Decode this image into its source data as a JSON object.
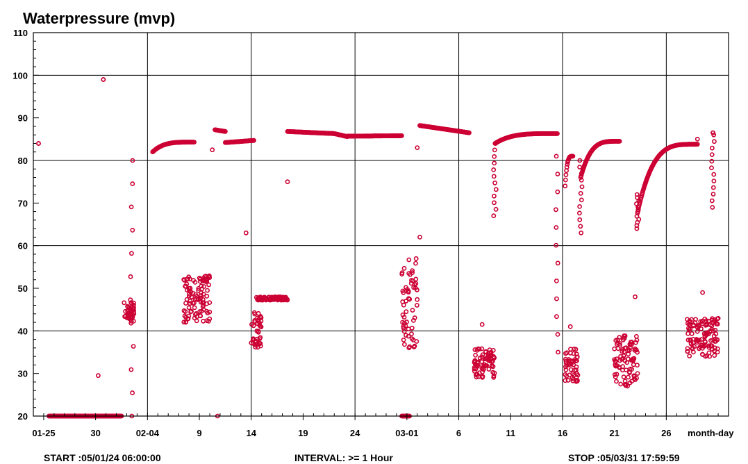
{
  "chart_data": {
    "type": "scatter",
    "title": "Waterpressure (mvp)",
    "xlabel": "month-day",
    "ylabel": "",
    "ylim": [
      20,
      110
    ],
    "y_ticks": [
      20,
      30,
      40,
      50,
      60,
      70,
      80,
      90,
      100,
      110
    ],
    "x_range_days": [
      "01-24",
      "03-31"
    ],
    "x_major_ticks": [
      {
        "label": "01-25",
        "date": "01-25"
      },
      {
        "label": "30",
        "date": "01-30"
      },
      {
        "label": "02-04",
        "date": "02-04"
      },
      {
        "label": "9",
        "date": "02-09"
      },
      {
        "label": "14",
        "date": "02-14"
      },
      {
        "label": "19",
        "date": "02-19"
      },
      {
        "label": "24",
        "date": "02-24"
      },
      {
        "label": "03-01",
        "date": "03-01"
      },
      {
        "label": "6",
        "date": "03-06"
      },
      {
        "label": "11",
        "date": "03-11"
      },
      {
        "label": "16",
        "date": "03-16"
      },
      {
        "label": "21",
        "date": "03-21"
      },
      {
        "label": "26",
        "date": "03-26"
      }
    ],
    "vertical_grid_dates": [
      "02-04",
      "02-14",
      "02-24",
      "03-06",
      "03-16",
      "03-26"
    ],
    "grid": true,
    "marker": "open-circle",
    "color": "#cc0033",
    "series": [
      {
        "segments": [
          {
            "from": "01-24 12:00",
            "to": "01-24 12:00",
            "y": [
              84,
              84
            ]
          },
          {
            "from": "01-25 12:00",
            "to": "02-01 12:00",
            "y": [
              20,
              20
            ]
          },
          {
            "from": "01-30 18:00",
            "to": "01-30 18:00",
            "y": [
              99,
              99
            ]
          },
          {
            "from": "02-04 12:00",
            "to": "02-08 12:00",
            "y": [
              82,
              84.3
            ],
            "curve": "log"
          },
          {
            "from": "02-10 12:00",
            "to": "02-11 12:00",
            "y": [
              87.2,
              86.8
            ]
          },
          {
            "from": "02-11 12:00",
            "to": "02-14 06:00",
            "y": [
              84.2,
              84.7
            ]
          },
          {
            "from": "02-17 12:00",
            "to": "02-22 00:00",
            "y": [
              86.8,
              86.3
            ]
          },
          {
            "from": "02-22 00:00",
            "to": "02-23 06:00",
            "y": [
              86.3,
              85.6
            ]
          },
          {
            "from": "02-23 06:00",
            "to": "02-28 12:00",
            "y": [
              85.7,
              85.8
            ]
          },
          {
            "from": "02-28 12:00",
            "to": "03-01 06:00",
            "y": [
              20,
              20
            ]
          },
          {
            "from": "03-02 06:00",
            "to": "03-07 00:00",
            "y": [
              88.2,
              86.5
            ]
          },
          {
            "from": "03-09 12:00",
            "to": "03-15 12:00",
            "y": [
              84,
              86.3
            ],
            "curve": "log"
          },
          {
            "from": "03-16 06:00",
            "to": "03-17 00:00",
            "y": [
              74,
              81
            ],
            "curve": "log"
          },
          {
            "from": "03-17 18:00",
            "to": "03-21 12:00",
            "y": [
              76,
              84.5
            ],
            "curve": "log"
          },
          {
            "from": "03-23 06:00",
            "to": "03-29 00:00",
            "y": [
              68,
              83.8
            ],
            "curve": "log"
          },
          {
            "from": "03-30 12:00",
            "to": "03-30 12:00",
            "y": [
              86.5,
              86.5
            ]
          }
        ]
      },
      {
        "clusters": [
          {
            "x_from": "02-01 18:00",
            "x_to": "02-02 18:00",
            "y_low": 42,
            "y_high": 47
          },
          {
            "x_from": "02-07 12:00",
            "x_to": "02-10 00:00",
            "y_low": 42,
            "y_high": 53
          },
          {
            "x_from": "02-14 00:00",
            "x_to": "02-15 00:00",
            "y_low": 36,
            "y_high": 45
          },
          {
            "x_from": "02-14 12:00",
            "x_to": "02-17 12:00",
            "y_low": 47.2,
            "y_high": 48
          },
          {
            "x_from": "02-28 12:00",
            "x_to": "03-02 00:00",
            "y_low": 36,
            "y_high": 57
          },
          {
            "x_from": "03-07 12:00",
            "x_to": "03-09 12:00",
            "y_low": 29,
            "y_high": 36
          },
          {
            "x_from": "03-16 06:00",
            "x_to": "03-17 12:00",
            "y_low": 28,
            "y_high": 36
          },
          {
            "x_from": "03-21 00:00",
            "x_to": "03-23 06:00",
            "y_low": 27,
            "y_high": 39
          },
          {
            "x_from": "03-28 00:00",
            "x_to": "03-31 00:00",
            "y_low": 34,
            "y_high": 43
          }
        ]
      },
      {
        "transitions": [
          {
            "x": "02-02 12:00",
            "y": [
              20,
              80
            ]
          },
          {
            "x": "03-09 12:00",
            "y": [
              67,
              84
            ]
          },
          {
            "x": "03-15 12:00",
            "y": [
              35,
              81
            ]
          },
          {
            "x": "03-17 18:00",
            "y": [
              63,
              80
            ]
          },
          {
            "x": "03-23 06:00",
            "y": [
              64,
              72
            ]
          },
          {
            "x": "03-30 12:00",
            "y": [
              69,
              86
            ]
          }
        ]
      },
      {
        "outliers": [
          {
            "x": "01-30 06:00",
            "y": 29.5
          },
          {
            "x": "02-10 06:00",
            "y": 82.5
          },
          {
            "x": "02-10 18:00",
            "y": 20
          },
          {
            "x": "02-13 12:00",
            "y": 63
          },
          {
            "x": "02-17 12:00",
            "y": 75
          },
          {
            "x": "03-02 06:00",
            "y": 62
          },
          {
            "x": "03-02 00:00",
            "y": 83
          },
          {
            "x": "03-08 06:00",
            "y": 41.5
          },
          {
            "x": "03-16 18:00",
            "y": 41
          },
          {
            "x": "03-23 00:00",
            "y": 48
          },
          {
            "x": "03-29 12:00",
            "y": 49
          },
          {
            "x": "03-29 00:00",
            "y": 85
          }
        ]
      }
    ]
  },
  "footer": {
    "start": "START :05/01/24 06:00:00",
    "interval": "INTERVAL: >= 1 Hour",
    "stop": "STOP :05/03/31 17:59:59"
  }
}
